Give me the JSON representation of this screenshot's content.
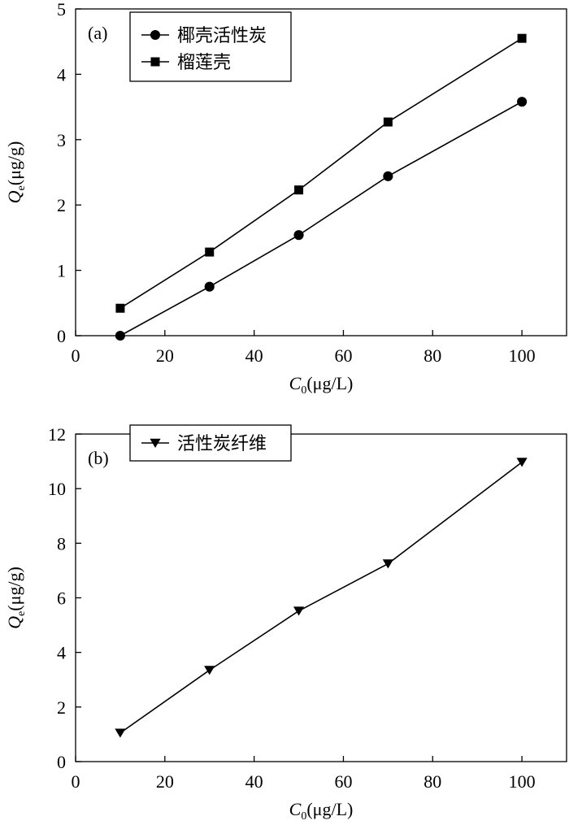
{
  "chart_data": [
    {
      "type": "line",
      "panel_label": "(a)",
      "x_label_var": "C",
      "x_label_sub": "0",
      "x_label_unit": "(μg/L)",
      "y_label_var": "Q",
      "y_label_sub": "e",
      "y_label_unit": "(μg/g)",
      "xlim": [
        0,
        110
      ],
      "ylim": [
        0,
        5
      ],
      "x_ticks": [
        0,
        20,
        40,
        60,
        80,
        100
      ],
      "y_ticks": [
        0,
        1,
        2,
        3,
        4,
        5
      ],
      "legend_position": "top-left",
      "series": [
        {
          "name": "椰壳活性炭",
          "marker": "circle",
          "x": [
            10,
            30,
            50,
            70,
            100
          ],
          "y": [
            0.0,
            0.75,
            1.54,
            2.44,
            3.58
          ]
        },
        {
          "name": "榴莲壳",
          "marker": "square",
          "x": [
            10,
            30,
            50,
            70,
            100
          ],
          "y": [
            0.42,
            1.28,
            2.23,
            3.27,
            4.55
          ]
        }
      ]
    },
    {
      "type": "line",
      "panel_label": "(b)",
      "x_label_var": "C",
      "x_label_sub": "0",
      "x_label_unit": "(μg/L)",
      "y_label_var": "Q",
      "y_label_sub": "e",
      "y_label_unit": "(μg/g)",
      "xlim": [
        0,
        110
      ],
      "ylim": [
        0,
        12
      ],
      "x_ticks": [
        0,
        20,
        40,
        60,
        80,
        100
      ],
      "y_ticks": [
        0,
        2,
        4,
        6,
        8,
        10,
        12
      ],
      "legend_position": "top-left",
      "series": [
        {
          "name": "活性炭纤维",
          "marker": "triangle-down",
          "x": [
            10,
            30,
            50,
            70,
            100
          ],
          "y": [
            1.05,
            3.35,
            5.52,
            7.25,
            10.97
          ]
        }
      ]
    }
  ]
}
